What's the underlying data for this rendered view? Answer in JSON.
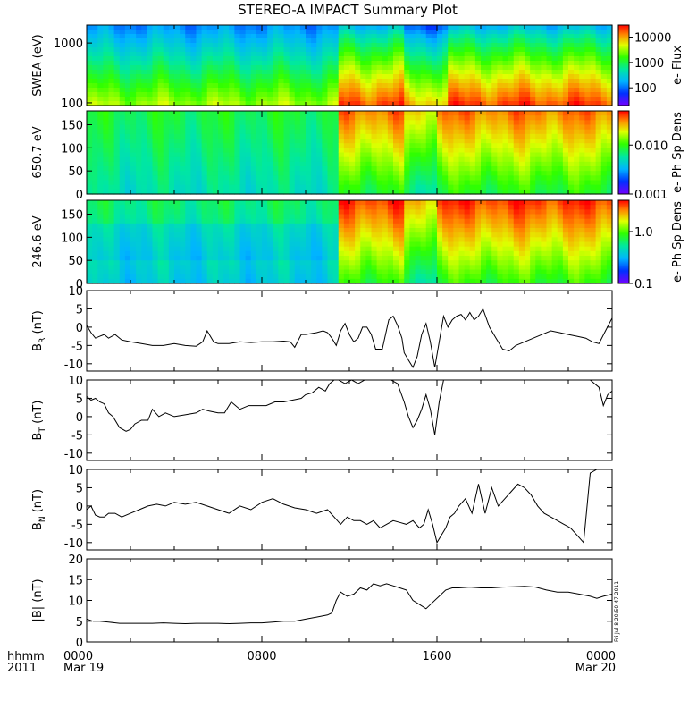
{
  "title": "STEREO-A IMPACT Summary Plot",
  "footer": {
    "time_label": "hhmm",
    "year_label": "2011",
    "x_ticks": [
      {
        "time": "0000",
        "date": "Mar 19",
        "hour": 0
      },
      {
        "time": "0800",
        "date": "",
        "hour": 8
      },
      {
        "time": "1600",
        "date": "",
        "hour": 16
      },
      {
        "time": "0000",
        "date": "Mar 20",
        "hour": 24
      }
    ],
    "timestamp": "Fri Jul 8 20:50:47 2011"
  },
  "chart_data": [
    {
      "type": "heatmap",
      "panel": "swea",
      "ylabel": "SWEA (eV)",
      "y_scale": "log",
      "ylim": [
        90,
        2000
      ],
      "yticks": [
        {
          "value": 100,
          "label": "100"
        },
        {
          "value": 1000,
          "label": "1000"
        }
      ],
      "colorbar": {
        "label": "e- Flux",
        "scale": "log",
        "range": [
          20,
          30000
        ],
        "ticks": [
          {
            "value": 100,
            "label": "100"
          },
          {
            "value": 1000,
            "label": "1000"
          },
          {
            "value": 10000,
            "label": "10000"
          }
        ]
      },
      "xlim_hours": [
        0,
        24
      ],
      "description_of_values": "log10 flux by time (hours) and energy; low flux at >1500 eV, peak near 100 eV",
      "transition_hour": 11.4,
      "time_nodes_hours": [
        0,
        2,
        4,
        6,
        8,
        10,
        11.3,
        11.5,
        12,
        14,
        16,
        18,
        20,
        22,
        23.3,
        24
      ],
      "pre_transition_profile": "roughly 1000 at 100 eV falling to 50 at 1500 eV",
      "post_transition_profile": "roughly 20000 at 100 eV falling to 80 at 1500 eV"
    },
    {
      "type": "heatmap",
      "panel": "pad650",
      "ylabel": "650.7 eV",
      "ylim": [
        0,
        180
      ],
      "yticks": [
        {
          "value": 0,
          "label": "0"
        },
        {
          "value": 50,
          "label": "50"
        },
        {
          "value": 100,
          "label": "100"
        },
        {
          "value": 150,
          "label": "150"
        }
      ],
      "colorbar": {
        "label": "e- Ph Sp Dens",
        "scale": "log",
        "range": [
          0.001,
          0.05
        ],
        "ticks": [
          {
            "value": 0.001,
            "label": "0.001"
          },
          {
            "value": 0.01,
            "label": "0.010"
          }
        ]
      },
      "xlim_hours": [
        0,
        24
      ],
      "transition_hour": 11.4
    },
    {
      "type": "heatmap",
      "panel": "pad246",
      "ylabel": "246.6 eV",
      "ylim": [
        0,
        180
      ],
      "yticks": [
        {
          "value": 0,
          "label": "0"
        },
        {
          "value": 50,
          "label": "50"
        },
        {
          "value": 100,
          "label": "100"
        },
        {
          "value": 150,
          "label": "150"
        }
      ],
      "colorbar": {
        "label": "e- Ph Sp Dens",
        "scale": "log",
        "range": [
          0.1,
          4
        ],
        "ticks": [
          {
            "value": 0.1,
            "label": "0.1"
          },
          {
            "value": 1.0,
            "label": "1.0"
          }
        ]
      },
      "xlim_hours": [
        0,
        24
      ],
      "transition_hour": 11.4
    },
    {
      "type": "line",
      "panel": "br",
      "ylabel": "B",
      "ylabel_sub": "R",
      "ylabel_unit": "(nT)",
      "ylim": [
        -12,
        10
      ],
      "yticks": [
        -10,
        -5,
        0,
        5,
        10
      ],
      "xlim_hours": [
        0,
        24
      ],
      "x": [
        0,
        0.2,
        0.4,
        0.6,
        0.8,
        1,
        1.3,
        1.6,
        2,
        2.5,
        3,
        3.5,
        4,
        4.5,
        5,
        5.3,
        5.5,
        5.8,
        6,
        6.5,
        7,
        7.5,
        8,
        8.5,
        9,
        9.3,
        9.5,
        9.8,
        10,
        10.5,
        10.8,
        11,
        11.2,
        11.4,
        11.6,
        11.8,
        12,
        12.2,
        12.4,
        12.6,
        12.8,
        13,
        13.2,
        13.5,
        13.8,
        14,
        14.2,
        14.4,
        14.5,
        14.7,
        14.9,
        15.1,
        15.3,
        15.5,
        15.7,
        15.9,
        16.1,
        16.3,
        16.5,
        16.7,
        16.9,
        17.1,
        17.3,
        17.5,
        17.7,
        17.9,
        18.1,
        18.4,
        18.7,
        19,
        19.3,
        19.6,
        20,
        20.4,
        20.8,
        21.2,
        21.6,
        22,
        22.4,
        22.8,
        23.1,
        23.4,
        23.7,
        24
      ],
      "y": [
        0.5,
        -1.5,
        -3,
        -2.5,
        -2,
        -3,
        -2,
        -3.5,
        -4,
        -4.5,
        -5,
        -5,
        -4.5,
        -5,
        -5.2,
        -4,
        -1,
        -4,
        -4.5,
        -4.5,
        -4,
        -4.2,
        -4,
        -4,
        -3.8,
        -4,
        -5.5,
        -2,
        -2,
        -1.5,
        -1,
        -1.5,
        -3,
        -5,
        -1,
        1,
        -2,
        -4,
        -3,
        0,
        0,
        -2,
        -6,
        -6,
        2,
        3,
        0.5,
        -3,
        -7,
        -9,
        -11,
        -8,
        -2,
        1,
        -4,
        -11,
        -4,
        3,
        0,
        2,
        3,
        3.5,
        2,
        4,
        2,
        3,
        5,
        0,
        -3,
        -6,
        -6.5,
        -5,
        -4,
        -3,
        -2,
        -1,
        -1.5,
        -2,
        -2.5,
        -3,
        -4,
        -4.5,
        -1,
        2.5
      ]
    },
    {
      "type": "line",
      "panel": "bt",
      "ylabel": "B",
      "ylabel_sub": "T",
      "ylabel_unit": "(nT)",
      "ylim": [
        -12,
        10
      ],
      "yticks": [
        -10,
        -5,
        0,
        5,
        10
      ],
      "xlim_hours": [
        0,
        24
      ],
      "x": [
        0,
        0.2,
        0.4,
        0.6,
        0.8,
        1,
        1.2,
        1.5,
        1.8,
        2,
        2.2,
        2.5,
        2.8,
        3,
        3.3,
        3.6,
        4,
        4.5,
        5,
        5.3,
        5.6,
        6,
        6.3,
        6.6,
        7,
        7.4,
        7.8,
        8.2,
        8.6,
        9,
        9.4,
        9.8,
        10,
        10.3,
        10.6,
        10.9,
        11.1,
        11.3,
        11.5,
        11.8,
        12.1,
        12.4,
        12.7,
        13,
        13.3,
        13.6,
        13.9,
        14.2,
        14.5,
        14.7,
        14.9,
        15.1,
        15.3,
        15.5,
        15.7,
        15.9,
        16.1,
        16.3,
        16.5,
        17,
        17.5,
        18,
        18.5,
        19,
        19.5,
        20,
        20.5,
        21,
        21.5,
        22,
        22.5,
        23,
        23.2,
        23.4,
        23.6,
        23.8,
        24
      ],
      "y": [
        5.5,
        4.5,
        5,
        4,
        3.5,
        1,
        0,
        -3,
        -4,
        -3.5,
        -2,
        -1,
        -1,
        2,
        0,
        1,
        0,
        0.5,
        1,
        2,
        1.5,
        1,
        1,
        4,
        2,
        3,
        3,
        3,
        4,
        4,
        4.5,
        5,
        6,
        6.5,
        8,
        7,
        9,
        10.5,
        10.5,
        9,
        10.5,
        9,
        10,
        10.5,
        10.5,
        10.5,
        10.5,
        9,
        4,
        0,
        -3,
        -1,
        2,
        6,
        2,
        -5,
        4,
        10.5,
        10.5,
        10.5,
        10.5,
        10.5,
        10.5,
        10.5,
        10.5,
        10.5,
        10.5,
        10.5,
        10.5,
        10.5,
        10.5,
        10.5,
        9,
        8,
        3,
        6,
        7
      ]
    },
    {
      "type": "line",
      "panel": "bn",
      "ylabel": "B",
      "ylabel_sub": "N",
      "ylabel_unit": "(nT)",
      "ylim": [
        -12,
        10
      ],
      "yticks": [
        -10,
        -5,
        0,
        5,
        10
      ],
      "xlim_hours": [
        0,
        24
      ],
      "x": [
        0,
        0.2,
        0.4,
        0.6,
        0.8,
        1,
        1.3,
        1.6,
        2,
        2.4,
        2.8,
        3.2,
        3.6,
        4,
        4.5,
        5,
        5.5,
        6,
        6.5,
        7,
        7.5,
        8,
        8.5,
        9,
        9.5,
        10,
        10.5,
        11,
        11.3,
        11.6,
        11.9,
        12.2,
        12.5,
        12.8,
        13.1,
        13.4,
        13.7,
        14,
        14.3,
        14.6,
        14.9,
        15.2,
        15.4,
        15.6,
        15.8,
        16,
        16.2,
        16.4,
        16.6,
        16.8,
        17,
        17.3,
        17.6,
        17.9,
        18.2,
        18.5,
        18.8,
        19.1,
        19.4,
        19.7,
        20,
        20.3,
        20.6,
        20.9,
        21.2,
        21.5,
        21.8,
        22.1,
        22.4,
        22.7,
        23,
        23.3,
        23.6,
        24
      ],
      "y": [
        -1,
        0,
        -2.5,
        -3,
        -3,
        -2,
        -2,
        -3,
        -2,
        -1,
        0,
        0.5,
        0,
        1,
        0.5,
        1,
        0,
        -1,
        -2,
        0,
        -1,
        1,
        2,
        0.5,
        -0.5,
        -1,
        -2,
        -1,
        -3,
        -5,
        -3,
        -4,
        -4,
        -5,
        -4,
        -6,
        -5,
        -4,
        -4.5,
        -5,
        -4,
        -6,
        -5,
        -1,
        -5,
        -10,
        -8,
        -6,
        -3,
        -2,
        0,
        2,
        -2,
        6,
        -2,
        5,
        0,
        2,
        4,
        6,
        5,
        3,
        0,
        -2,
        -3,
        -4,
        -5,
        -6,
        -8,
        -10,
        9,
        10,
        10,
        10
      ]
    },
    {
      "type": "line",
      "panel": "bmag",
      "ylabel": "|B| (nT)",
      "ylim": [
        0,
        20
      ],
      "yticks": [
        0,
        5,
        10,
        15,
        20
      ],
      "xlim_hours": [
        0,
        24
      ],
      "x": [
        0,
        0.3,
        0.6,
        1,
        1.5,
        2,
        2.5,
        3,
        3.5,
        4,
        4.5,
        5,
        5.5,
        6,
        6.5,
        7,
        7.5,
        8,
        8.5,
        9,
        9.5,
        10,
        10.5,
        11,
        11.2,
        11.4,
        11.6,
        11.9,
        12.2,
        12.5,
        12.8,
        13.1,
        13.4,
        13.7,
        14,
        14.3,
        14.6,
        14.9,
        15.2,
        15.5,
        15.8,
        16.1,
        16.4,
        16.7,
        17,
        17.5,
        18,
        18.5,
        19,
        19.5,
        20,
        20.5,
        21,
        21.5,
        22,
        22.5,
        23,
        23.3,
        23.6,
        24
      ],
      "y": [
        5.5,
        5,
        5,
        4.8,
        4.5,
        4.5,
        4.5,
        4.5,
        4.6,
        4.5,
        4.4,
        4.5,
        4.5,
        4.5,
        4.4,
        4.5,
        4.6,
        4.6,
        4.8,
        5,
        5,
        5.5,
        6,
        6.5,
        7,
        10,
        12,
        11,
        11.5,
        13,
        12.5,
        14,
        13.5,
        14,
        13.5,
        13,
        12.5,
        10,
        9,
        8,
        9.5,
        11,
        12.5,
        13,
        13,
        13.2,
        13,
        13,
        13.2,
        13.3,
        13.4,
        13.2,
        12.5,
        12,
        12,
        11.5,
        11,
        10.5,
        11,
        11.5
      ]
    }
  ]
}
